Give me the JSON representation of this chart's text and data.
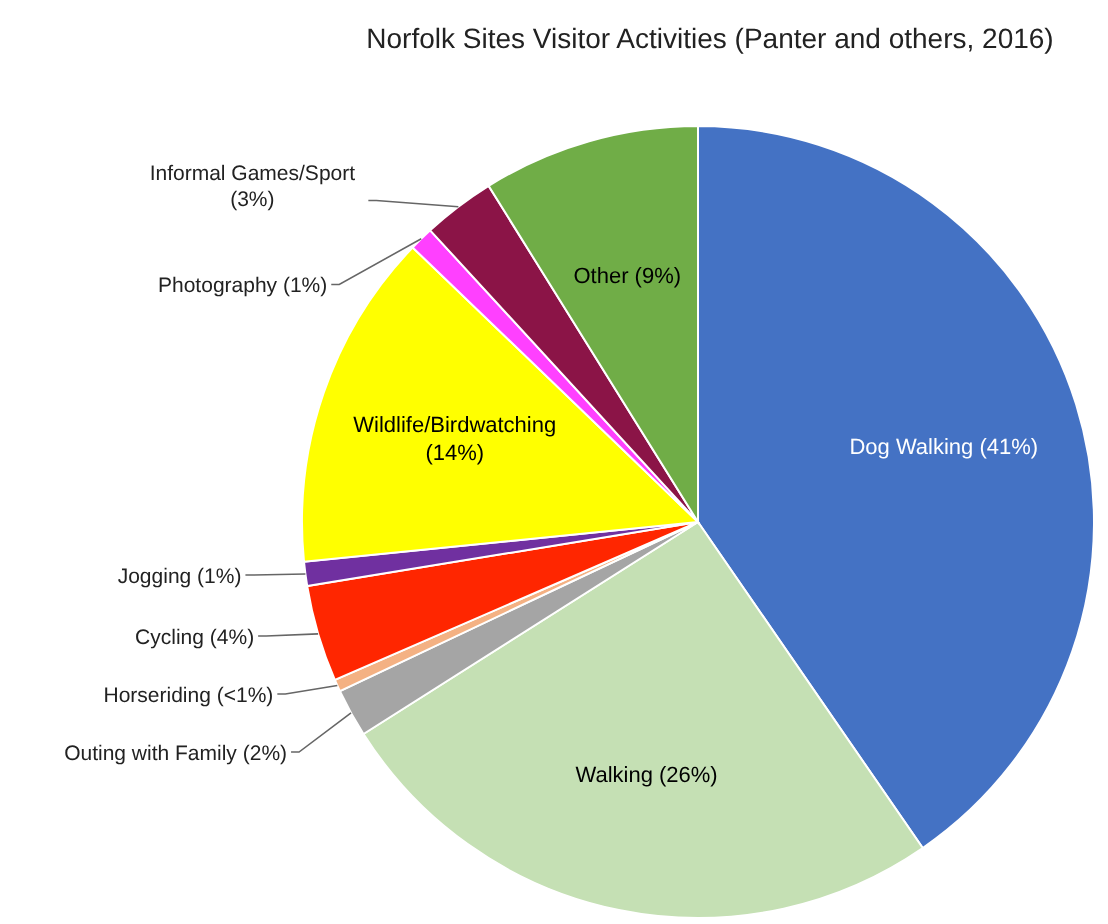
{
  "chart_data": {
    "type": "pie",
    "title": "Norfolk Sites Visitor Activities (Panter and others, 2016)",
    "categories": [
      "Dog Walking",
      "Walking",
      "Outing with Family",
      "Horseriding",
      "Cycling",
      "Jogging",
      "Wildlife/Birdwatching",
      "Photography",
      "Informal Games/Sport",
      "Other"
    ],
    "values": [
      41,
      26,
      2,
      0.5,
      4,
      1,
      14,
      1,
      3,
      9
    ],
    "value_labels": [
      "(41%)",
      "(26%)",
      "(2%)",
      "(<1%)",
      "(4%)",
      "(1%)",
      "(14%)",
      "(1%)",
      "(3%)",
      "(9%)"
    ],
    "colors": [
      "#4472c4",
      "#c5e0b4",
      "#a5a5a5",
      "#f4b183",
      "#ff2600",
      "#7030a0",
      "#ffff00",
      "#ff40ff",
      "#8b1447",
      "#70ad47"
    ]
  }
}
